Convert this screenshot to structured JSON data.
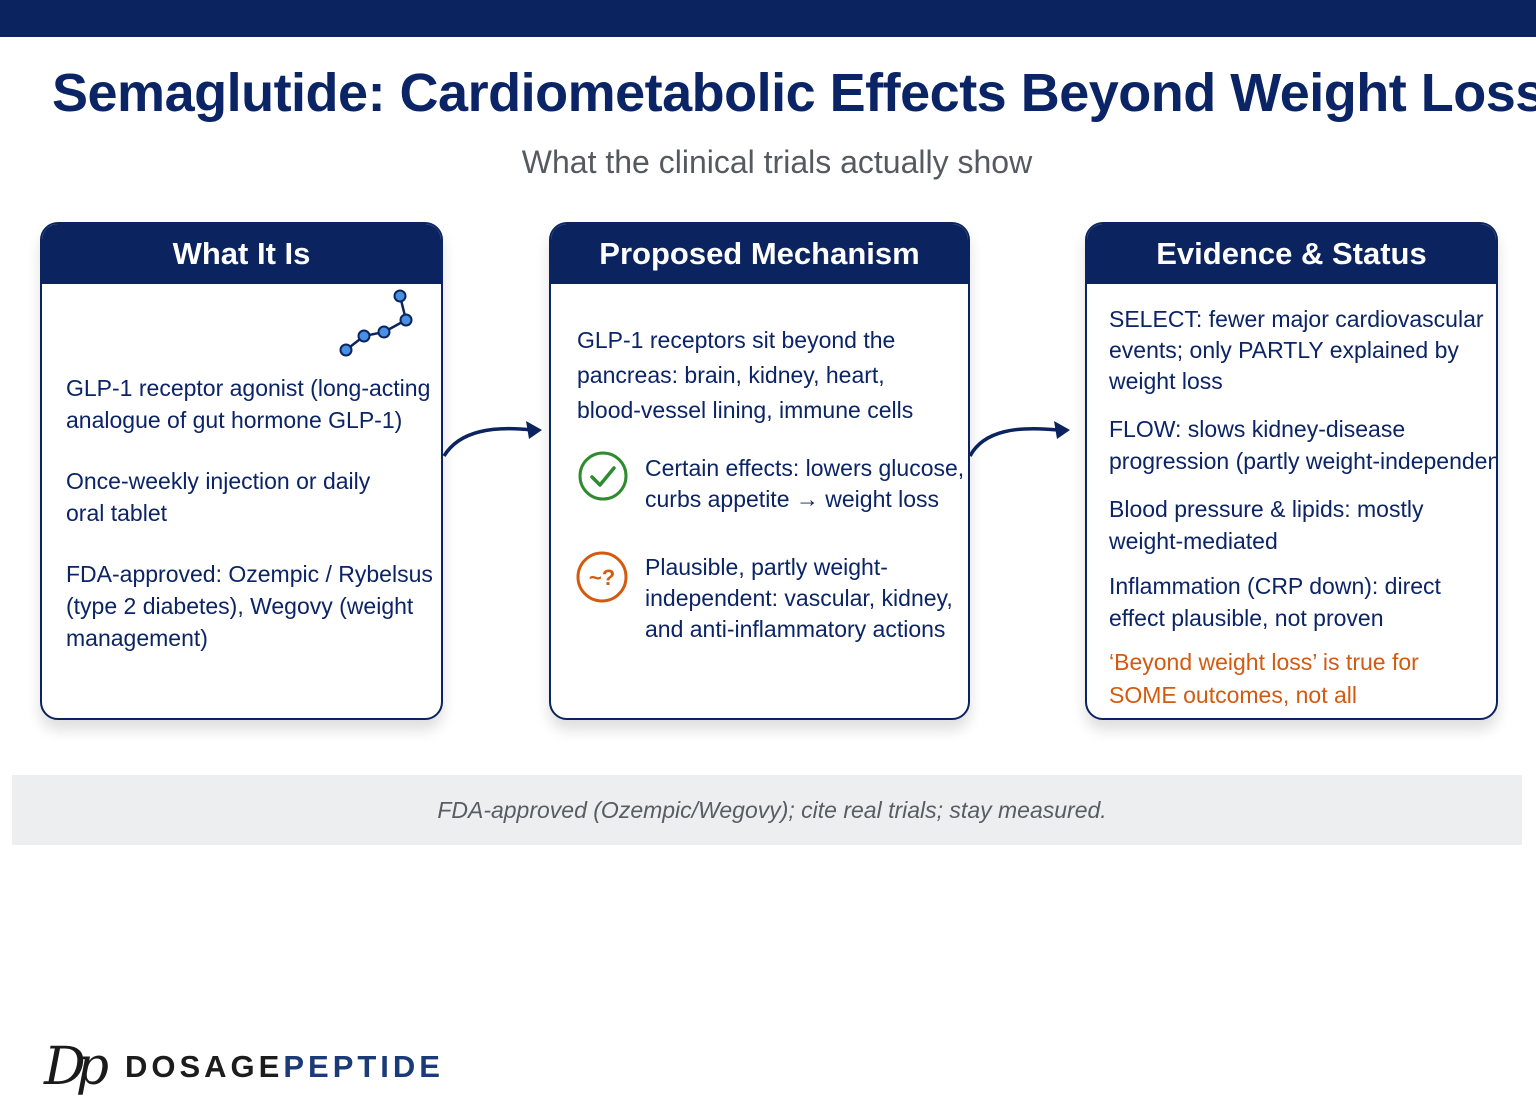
{
  "title": "Semaglutide: Cardiometabolic Effects Beyond Weight Loss?",
  "subtitle": "What the clinical trials actually show",
  "colors": {
    "navy": "#0b2460",
    "green": "#2e8b2e",
    "orange": "#d35a0e",
    "footer_bg": "#eceef0"
  },
  "cards": [
    {
      "heading": "What It Is",
      "icon": "molecule-icon",
      "items": [
        [
          "GLP-1 receptor agonist (long-acting",
          "analogue of gut hormone GLP-1)"
        ],
        [
          "Once-weekly injection or daily",
          "oral tablet"
        ],
        [
          "FDA-approved: Ozempic / Rybelsus",
          "(type 2 diabetes), Wegovy (weight",
          "management)"
        ]
      ]
    },
    {
      "heading": "Proposed Mechanism",
      "intro": [
        "GLP-1 receptors sit beyond the",
        "pancreas: brain, kidney, heart,",
        "blood-vessel lining, immune cells"
      ],
      "certain": {
        "icon": "check-circle-icon",
        "lines": [
          "Certain effects: lowers glucose,",
          "curbs appetite → weight loss"
        ]
      },
      "plausible": {
        "icon": "question-circle-icon",
        "symbol": "~?",
        "lines": [
          "Plausible, partly weight-",
          "independent: vascular, kidney,",
          "and anti-inflammatory actions"
        ]
      }
    },
    {
      "heading": "Evidence & Status",
      "items": [
        [
          "SELECT: fewer major cardiovascular",
          "events; only PARTLY explained by",
          "weight loss"
        ],
        [
          "FLOW: slows kidney-disease",
          "progression (partly weight-independent)"
        ],
        [
          "Blood pressure & lipids: mostly",
          "weight-mediated"
        ],
        [
          "Inflammation (CRP down): direct",
          "effect plausible, not proven"
        ]
      ],
      "conclusion": [
        "‘Beyond weight loss’ is true for",
        "SOME outcomes, not all"
      ]
    }
  ],
  "footer_note": "FDA-approved  (Ozempic/Wegovy); cite real trials; stay measured.",
  "logo": {
    "mark": "Dp",
    "word_a": "DOSAGE",
    "word_b": "PEPTIDE"
  }
}
